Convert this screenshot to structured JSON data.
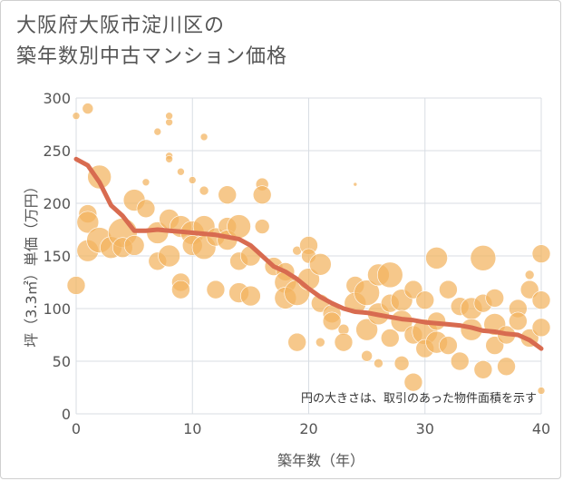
{
  "chart_data": {
    "type": "scatter",
    "title_lines": [
      "大阪府大阪市淀川区の",
      "築年数別中古マンション価格"
    ],
    "xlabel": "築年数（年）",
    "ylabel": "坪（3.3㎡）単価（万円）",
    "xlim": [
      0,
      40
    ],
    "ylim": [
      0,
      300
    ],
    "x_ticks": [
      0,
      10,
      20,
      30,
      40
    ],
    "y_ticks": [
      0,
      50,
      100,
      150,
      200,
      250,
      300
    ],
    "grid": true,
    "note": "円の大きさは、取引のあった物件面積を示す",
    "colors": {
      "bubble": "#f2b35e",
      "trend": "#d86b50",
      "grid": "#d8dde3",
      "text": "#555555"
    },
    "trend_line": {
      "x": [
        0,
        1,
        2,
        3,
        4,
        5,
        6,
        7,
        8,
        9,
        10,
        11,
        12,
        13,
        14,
        15,
        16,
        17,
        18,
        19,
        20,
        21,
        22,
        23,
        24,
        25,
        26,
        27,
        28,
        29,
        30,
        31,
        32,
        33,
        34,
        35,
        36,
        37,
        38,
        39,
        40
      ],
      "y": [
        242,
        236,
        220,
        198,
        188,
        174,
        174,
        175,
        174,
        173,
        172,
        171,
        170,
        168,
        166,
        160,
        150,
        140,
        135,
        128,
        119,
        111,
        105,
        100,
        97,
        96,
        94,
        92,
        90,
        89,
        87,
        86,
        85,
        84,
        82,
        79,
        78,
        76,
        75,
        70,
        62
      ]
    },
    "points": [
      {
        "x": 0,
        "y": 283,
        "s": 4
      },
      {
        "x": 1,
        "y": 290,
        "s": 6
      },
      {
        "x": 0,
        "y": 122,
        "s": 10
      },
      {
        "x": 1,
        "y": 190,
        "s": 10
      },
      {
        "x": 1,
        "y": 182,
        "s": 12
      },
      {
        "x": 1,
        "y": 155,
        "s": 12
      },
      {
        "x": 2,
        "y": 225,
        "s": 13
      },
      {
        "x": 2,
        "y": 165,
        "s": 14
      },
      {
        "x": 3,
        "y": 158,
        "s": 12
      },
      {
        "x": 4,
        "y": 172,
        "s": 16
      },
      {
        "x": 4,
        "y": 158,
        "s": 11
      },
      {
        "x": 5,
        "y": 203,
        "s": 12
      },
      {
        "x": 5,
        "y": 160,
        "s": 11
      },
      {
        "x": 6,
        "y": 220,
        "s": 4
      },
      {
        "x": 6,
        "y": 195,
        "s": 10
      },
      {
        "x": 7,
        "y": 268,
        "s": 4
      },
      {
        "x": 7,
        "y": 172,
        "s": 12
      },
      {
        "x": 7,
        "y": 145,
        "s": 10
      },
      {
        "x": 8,
        "y": 277,
        "s": 4
      },
      {
        "x": 8,
        "y": 283,
        "s": 4
      },
      {
        "x": 8,
        "y": 245,
        "s": 4
      },
      {
        "x": 8,
        "y": 242,
        "s": 4
      },
      {
        "x": 8,
        "y": 185,
        "s": 11
      },
      {
        "x": 8,
        "y": 150,
        "s": 12
      },
      {
        "x": 9,
        "y": 230,
        "s": 4
      },
      {
        "x": 9,
        "y": 178,
        "s": 12
      },
      {
        "x": 9,
        "y": 125,
        "s": 10
      },
      {
        "x": 9,
        "y": 118,
        "s": 10
      },
      {
        "x": 10,
        "y": 222,
        "s": 4
      },
      {
        "x": 10,
        "y": 172,
        "s": 13
      },
      {
        "x": 10,
        "y": 160,
        "s": 11
      },
      {
        "x": 11,
        "y": 263,
        "s": 4
      },
      {
        "x": 11,
        "y": 212,
        "s": 5
      },
      {
        "x": 11,
        "y": 178,
        "s": 12
      },
      {
        "x": 11,
        "y": 158,
        "s": 13
      },
      {
        "x": 12,
        "y": 168,
        "s": 10
      },
      {
        "x": 12,
        "y": 118,
        "s": 10
      },
      {
        "x": 13,
        "y": 208,
        "s": 10
      },
      {
        "x": 13,
        "y": 178,
        "s": 10
      },
      {
        "x": 13,
        "y": 165,
        "s": 11
      },
      {
        "x": 14,
        "y": 178,
        "s": 13
      },
      {
        "x": 14,
        "y": 145,
        "s": 10
      },
      {
        "x": 14,
        "y": 115,
        "s": 11
      },
      {
        "x": 15,
        "y": 150,
        "s": 11
      },
      {
        "x": 15,
        "y": 112,
        "s": 11
      },
      {
        "x": 16,
        "y": 218,
        "s": 7
      },
      {
        "x": 16,
        "y": 208,
        "s": 10
      },
      {
        "x": 16,
        "y": 178,
        "s": 8
      },
      {
        "x": 17,
        "y": 140,
        "s": 10
      },
      {
        "x": 18,
        "y": 135,
        "s": 10
      },
      {
        "x": 18,
        "y": 125,
        "s": 12
      },
      {
        "x": 18,
        "y": 110,
        "s": 12
      },
      {
        "x": 19,
        "y": 155,
        "s": 5
      },
      {
        "x": 19,
        "y": 115,
        "s": 14
      },
      {
        "x": 19,
        "y": 68,
        "s": 10
      },
      {
        "x": 20,
        "y": 160,
        "s": 10
      },
      {
        "x": 20,
        "y": 150,
        "s": 8
      },
      {
        "x": 20,
        "y": 128,
        "s": 12
      },
      {
        "x": 21,
        "y": 142,
        "s": 12
      },
      {
        "x": 21,
        "y": 105,
        "s": 10
      },
      {
        "x": 21,
        "y": 68,
        "s": 5
      },
      {
        "x": 22,
        "y": 95,
        "s": 10
      },
      {
        "x": 22,
        "y": 88,
        "s": 10
      },
      {
        "x": 23,
        "y": 80,
        "s": 6
      },
      {
        "x": 23,
        "y": 68,
        "s": 10
      },
      {
        "x": 24,
        "y": 218,
        "s": 2
      },
      {
        "x": 24,
        "y": 122,
        "s": 10
      },
      {
        "x": 24,
        "y": 105,
        "s": 12
      },
      {
        "x": 25,
        "y": 115,
        "s": 14
      },
      {
        "x": 25,
        "y": 80,
        "s": 12
      },
      {
        "x": 25,
        "y": 55,
        "s": 6
      },
      {
        "x": 26,
        "y": 132,
        "s": 12
      },
      {
        "x": 26,
        "y": 95,
        "s": 12
      },
      {
        "x": 26,
        "y": 48,
        "s": 5
      },
      {
        "x": 27,
        "y": 132,
        "s": 14
      },
      {
        "x": 27,
        "y": 105,
        "s": 10
      },
      {
        "x": 27,
        "y": 72,
        "s": 10
      },
      {
        "x": 28,
        "y": 108,
        "s": 12
      },
      {
        "x": 28,
        "y": 88,
        "s": 12
      },
      {
        "x": 28,
        "y": 48,
        "s": 8
      },
      {
        "x": 29,
        "y": 118,
        "s": 10
      },
      {
        "x": 29,
        "y": 75,
        "s": 10
      },
      {
        "x": 29,
        "y": 30,
        "s": 10
      },
      {
        "x": 30,
        "y": 108,
        "s": 10
      },
      {
        "x": 30,
        "y": 78,
        "s": 14
      },
      {
        "x": 30,
        "y": 62,
        "s": 10
      },
      {
        "x": 31,
        "y": 148,
        "s": 12
      },
      {
        "x": 31,
        "y": 88,
        "s": 10
      },
      {
        "x": 31,
        "y": 68,
        "s": 12
      },
      {
        "x": 32,
        "y": 118,
        "s": 10
      },
      {
        "x": 32,
        "y": 65,
        "s": 10
      },
      {
        "x": 33,
        "y": 102,
        "s": 10
      },
      {
        "x": 33,
        "y": 50,
        "s": 10
      },
      {
        "x": 34,
        "y": 100,
        "s": 12
      },
      {
        "x": 34,
        "y": 80,
        "s": 12
      },
      {
        "x": 35,
        "y": 148,
        "s": 14
      },
      {
        "x": 35,
        "y": 105,
        "s": 10
      },
      {
        "x": 35,
        "y": 42,
        "s": 10
      },
      {
        "x": 36,
        "y": 110,
        "s": 10
      },
      {
        "x": 36,
        "y": 85,
        "s": 12
      },
      {
        "x": 36,
        "y": 65,
        "s": 10
      },
      {
        "x": 37,
        "y": 75,
        "s": 10
      },
      {
        "x": 37,
        "y": 45,
        "s": 10
      },
      {
        "x": 38,
        "y": 100,
        "s": 10
      },
      {
        "x": 38,
        "y": 88,
        "s": 10
      },
      {
        "x": 39,
        "y": 132,
        "s": 5
      },
      {
        "x": 39,
        "y": 118,
        "s": 10
      },
      {
        "x": 39,
        "y": 72,
        "s": 10
      },
      {
        "x": 40,
        "y": 152,
        "s": 10
      },
      {
        "x": 40,
        "y": 108,
        "s": 10
      },
      {
        "x": 40,
        "y": 82,
        "s": 10
      },
      {
        "x": 40,
        "y": 22,
        "s": 4
      }
    ]
  }
}
